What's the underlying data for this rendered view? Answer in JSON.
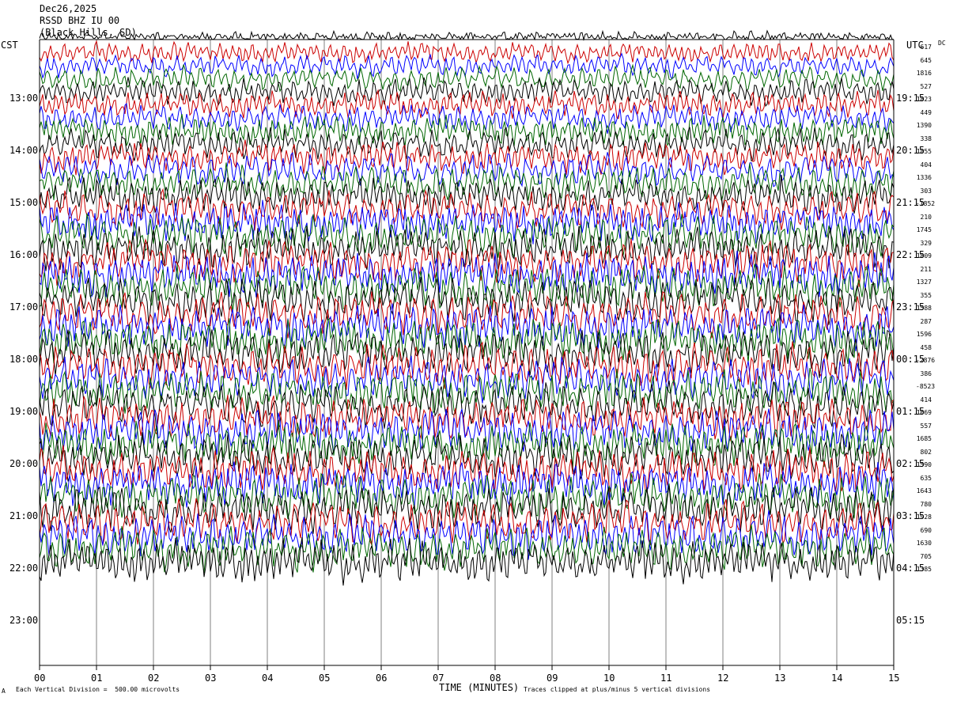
{
  "header": {
    "date": "Dec26,2025",
    "station": "RSSD BHZ IU 00",
    "location": "(Black Hills, SD)"
  },
  "left_tz": "CST",
  "right_tz": "UTC",
  "right_col_label": "DC",
  "footer": {
    "scale": "Each Vertical Division =  500.00 microvolts",
    "clip": "Traces clipped at plus/minus 5 vertical divisions",
    "corner": "A"
  },
  "chart_data": {
    "type": "line",
    "title": "",
    "xlabel": "TIME (MINUTES)",
    "xlim": [
      0,
      15
    ],
    "x_ticks": [
      "00",
      "01",
      "02",
      "03",
      "04",
      "05",
      "06",
      "07",
      "08",
      "09",
      "10",
      "11",
      "12",
      "13",
      "14",
      "15"
    ],
    "left_time_labels": [
      "13:00",
      "14:00",
      "15:00",
      "16:00",
      "17:00",
      "18:00",
      "19:00",
      "20:00",
      "21:00",
      "22:00",
      "23:00"
    ],
    "right_time_labels": [
      "19:15",
      "20:15",
      "21:15",
      "22:15",
      "23:15",
      "00:15",
      "01:15",
      "02:15",
      "03:15",
      "04:15",
      "05:15"
    ],
    "trace_colors": [
      "#000000",
      "#cc0000",
      "#0000ff",
      "#006600"
    ],
    "trace_count": 41,
    "dc_offsets": [
      "617",
      "645",
      "1816",
      "527",
      "1823",
      "449",
      "1390",
      "338",
      "1855",
      "404",
      "1336",
      "303",
      "-1852",
      "210",
      "1745",
      "329",
      "1809",
      "211",
      "1327",
      "355",
      "1588",
      "287",
      "1596",
      "458",
      "-2876",
      "386",
      "-8523",
      "414",
      "1669",
      "557",
      "1685",
      "802",
      "1590",
      "635",
      "1643",
      "780",
      "1928",
      "690",
      "1630",
      "705",
      "1385"
    ],
    "grid": true,
    "clipped_divisions": 5
  }
}
